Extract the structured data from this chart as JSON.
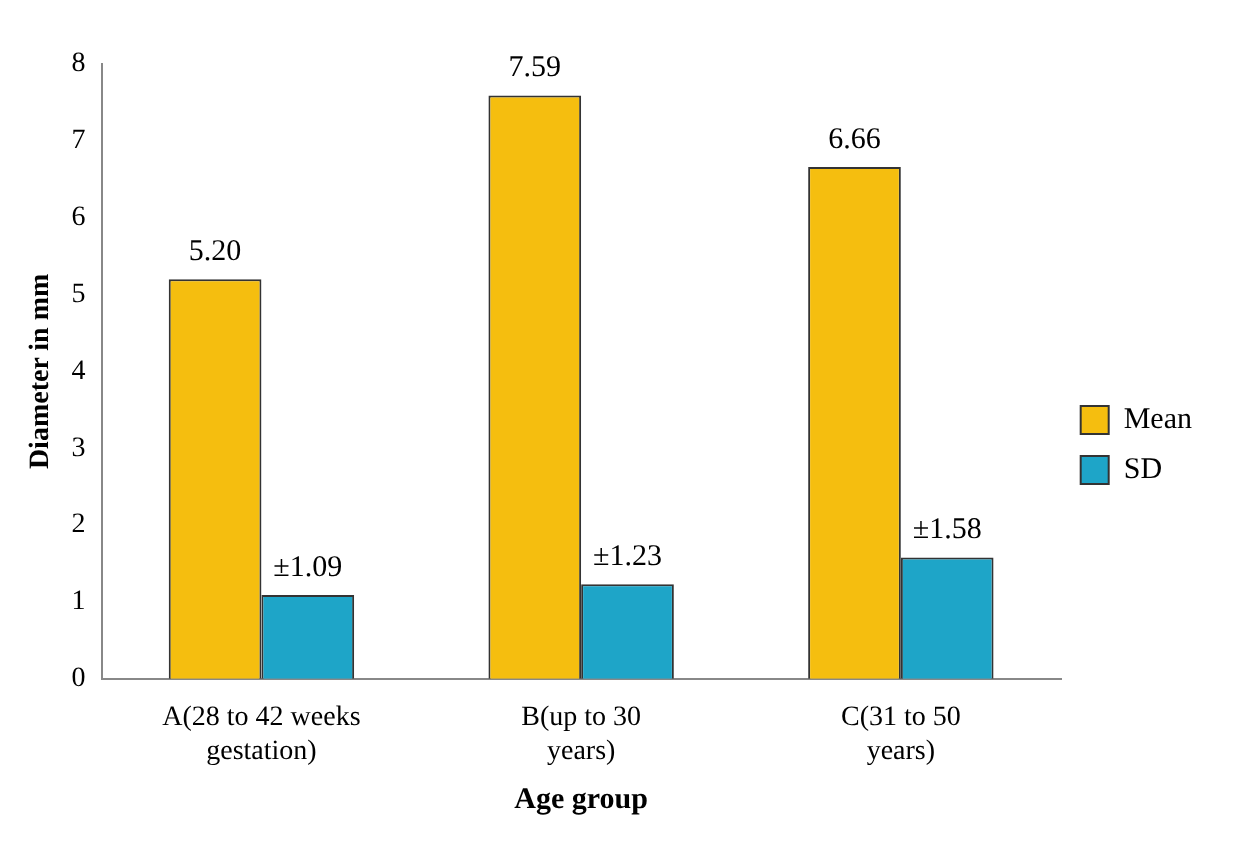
{
  "chart_data": {
    "type": "bar",
    "xlabel": "Age group",
    "ylabel": "Diameter in mm",
    "categories": [
      "A(28 to 42 weeks gestation)",
      "B(up to 30 years)",
      "C(31 to 50 years)"
    ],
    "series": [
      {
        "name": "Mean",
        "color": "#f5be0f",
        "values": [
          5.2,
          7.59,
          6.66
        ],
        "value_labels": [
          "5.20",
          "7.59",
          "6.66"
        ]
      },
      {
        "name": "SD",
        "color": "#1ea5c8",
        "values": [
          1.09,
          1.23,
          1.58
        ],
        "value_labels": [
          "±1.09",
          "±1.23",
          "±1.58"
        ]
      }
    ],
    "ylim": [
      0,
      8
    ],
    "yticks": [
      0,
      1,
      2,
      3,
      4,
      5,
      6,
      7,
      8
    ],
    "grid": false,
    "legend": "right"
  }
}
